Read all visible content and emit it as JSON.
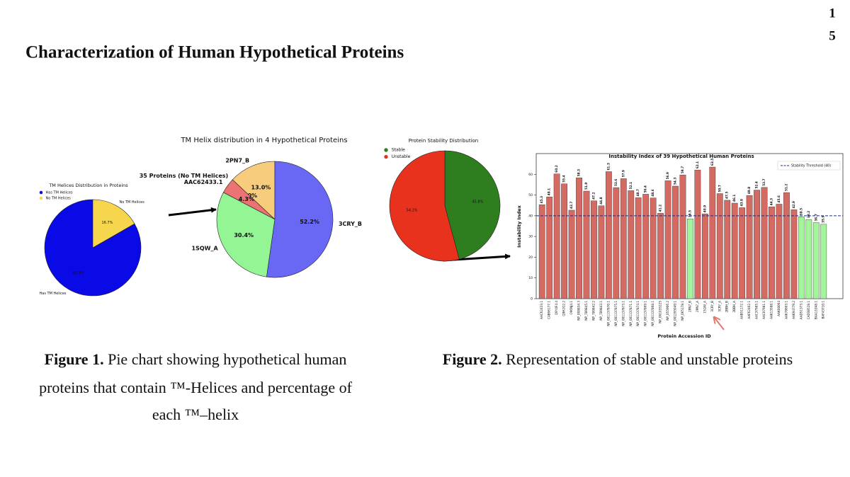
{
  "header": {
    "title": "Characterization of Human Hypothetical Proteins",
    "page_number": [
      "1",
      "5"
    ]
  },
  "chart_data": [
    {
      "type": "pie",
      "title": "TM Helices Distribution in Proteins",
      "categories": [
        "Has TM Helices",
        "No TM Helices"
      ],
      "values": [
        83.3,
        16.7
      ],
      "value_labels": [
        "83.3%",
        "16.7%"
      ],
      "colors": [
        "#0a0ae6",
        "#f5d64c"
      ],
      "category_labels": true,
      "legend": "upper left"
    },
    {
      "type": "pie",
      "title": "TM Helix distribution in 4 Hypothetical Proteins",
      "categories": [
        "2PN7_B",
        "35 Proteins (No TM Helices)",
        "AAC62433.1",
        "1SQW_A",
        "3CRY_B"
      ],
      "values": [
        13.0,
        0.0,
        4.3,
        30.4,
        52.2
      ],
      "value_labels": [
        "13.0%",
        "0.0%",
        "4.3%",
        "30.4%",
        "52.2%"
      ],
      "colors": [
        "#f7cd7d",
        "#e06666",
        "#eb7373",
        "#93f593",
        "#6868f5"
      ],
      "category_labels": true
    },
    {
      "type": "pie",
      "title": "Protein Stability Distribution",
      "categories": [
        "Stable",
        "Unstable"
      ],
      "values": [
        45.8,
        54.2
      ],
      "value_labels": [
        "45.8%",
        "54.2%"
      ],
      "colors": [
        "#2e7d1f",
        "#e8321e"
      ],
      "category_labels": false,
      "legend": "upper left"
    },
    {
      "type": "bar",
      "title": "Instability Index of 39 Hypothetical Human Proteins",
      "xlabel": "Protein Accession ID",
      "ylabel": "Instability Index",
      "categories": [
        "AAC62433.1",
        "CAB96177.1",
        "Q9Y4F4.4",
        "Q9H2G2.2",
        "O96NJ4.1",
        "NP_008834.3",
        "NP_789845.1",
        "NP_789842.2",
        "NP_789843.1",
        "NP_001137870.1",
        "NP_001137875.1",
        "NP_001137873.1",
        "NP_001137871.1",
        "NP_001137874.1",
        "NP_001137869.1",
        "NP_001137868.1",
        "NP_001035225",
        "NP_055906.2",
        "NP_001295049.1",
        "NP_065178.1",
        "2PN7_B",
        "2PN7_A",
        "1SQW_A",
        "3CRY_B",
        "3CRY_A",
        "2BBH_B",
        "2BBH_A",
        "AAB51172.1",
        "AAF62402.1",
        "AAC37985.1",
        "AAC07981.1",
        "AAK13588.1",
        "AAK08064",
        "AAK78603.1",
        "AAK94779.2",
        "AAD51373.1",
        "CAD38528.1",
        "BAA11048.1",
        "BAF43710.1"
      ],
      "values": [
        45.3,
        49.1,
        60.2,
        55.4,
        42.7,
        58.3,
        51.9,
        47.2,
        44.8,
        61.3,
        53.6,
        57.9,
        52.1,
        48.7,
        50.4,
        48.6,
        41.2,
        56.9,
        54.3,
        59.7,
        38.5,
        62.1,
        40.9,
        63.5,
        50.7,
        47.5,
        46.1,
        43.9,
        49.8,
        52.4,
        53.7,
        44.3,
        45.6,
        51.2,
        42.9,
        39.5,
        38.2,
        36.7,
        35.9
      ],
      "color": "#d46a62",
      "below_color": "#a3f59a",
      "threshold": {
        "value": 40,
        "label": "Stability Threshold (40)",
        "color": "#1f2d8a"
      },
      "ylim": [
        0,
        70
      ],
      "yticks": [
        0,
        10,
        20,
        30,
        40,
        50,
        60
      ],
      "legend": "upper right"
    }
  ],
  "captions": [
    {
      "label": "Figure 1.",
      "lines": [
        "Pie chart showing hypothetical human",
        "proteins that contain ™-Helices and percentage of",
        "each ™–helix"
      ]
    },
    {
      "label": "Figure 2.",
      "lines": [
        "Representation of stable and unstable proteins"
      ]
    }
  ]
}
